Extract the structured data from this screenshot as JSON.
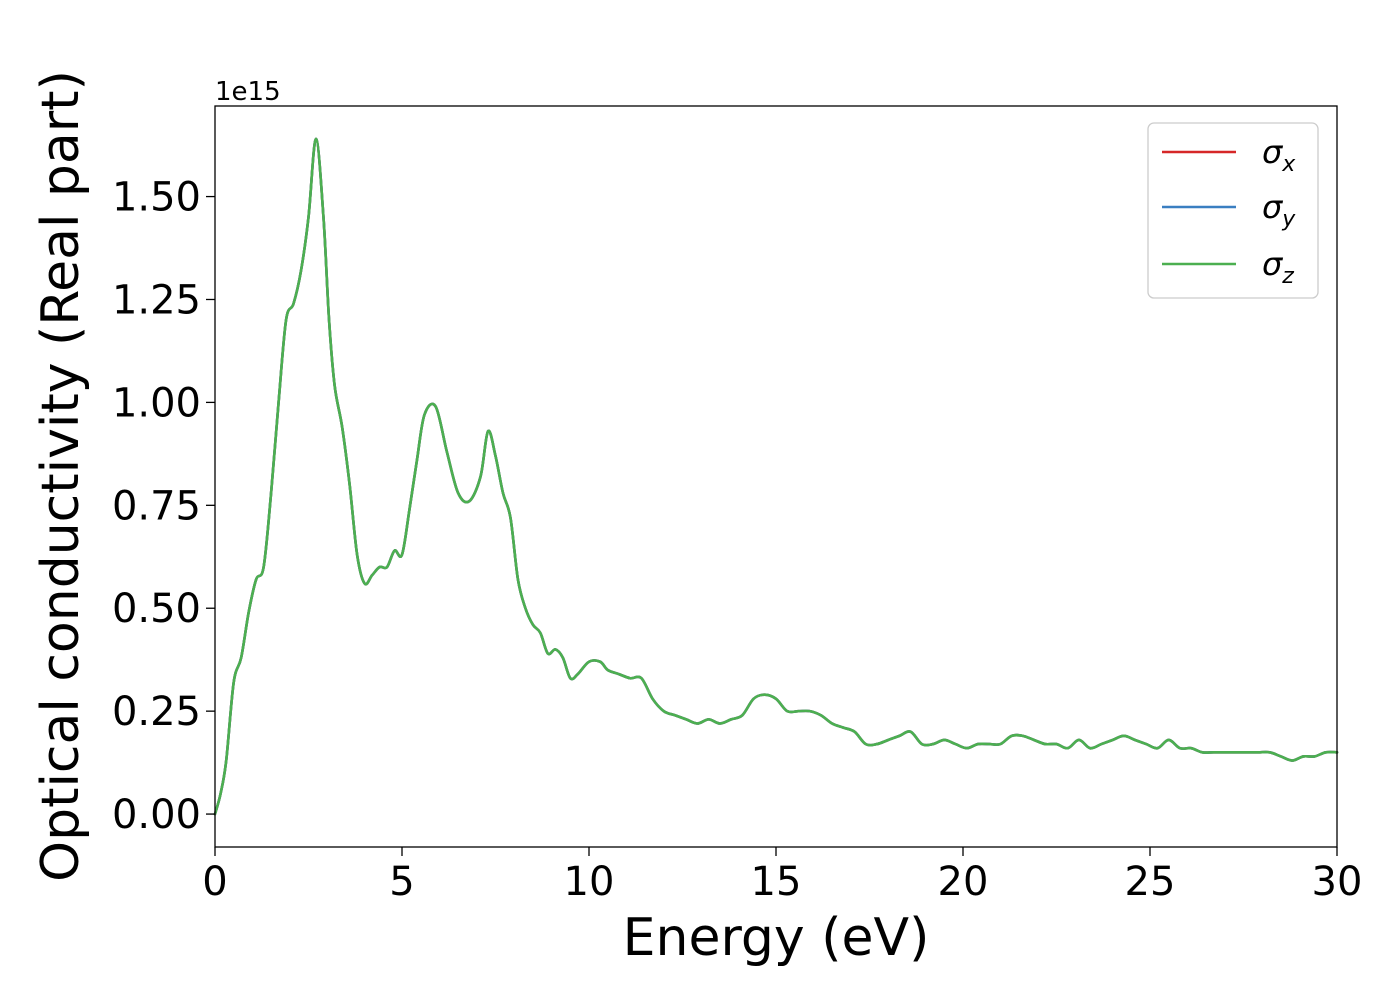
{
  "chart_data": {
    "type": "line",
    "title": "",
    "xlabel": "Energy (eV)",
    "ylabel": "Optical conductivity (Real part)",
    "y_offset_text": "1e15",
    "xlim": [
      0,
      30
    ],
    "ylim": [
      -0.08,
      1.72
    ],
    "x_ticks": [
      0,
      5,
      10,
      15,
      20,
      25,
      30
    ],
    "x_tick_labels": [
      "0",
      "5",
      "10",
      "15",
      "20",
      "25",
      "30"
    ],
    "y_ticks": [
      0.0,
      0.25,
      0.5,
      0.75,
      1.0,
      1.25,
      1.5
    ],
    "y_tick_labels": [
      "0.00",
      "0.25",
      "0.50",
      "0.75",
      "1.00",
      "1.25",
      "1.50"
    ],
    "grid": false,
    "legend_position": "top-right",
    "legend": [
      {
        "symbol": "σ",
        "subscript": "x",
        "color": "#d62728"
      },
      {
        "symbol": "σ",
        "subscript": "y",
        "color": "#3a7fc1"
      },
      {
        "symbol": "σ",
        "subscript": "z",
        "color": "#4caf50"
      }
    ],
    "x": [
      0,
      0.15,
      0.3,
      0.5,
      0.7,
      0.9,
      1.1,
      1.3,
      1.5,
      1.7,
      1.9,
      2.1,
      2.3,
      2.5,
      2.7,
      2.9,
      3.05,
      3.2,
      3.4,
      3.6,
      3.8,
      4.0,
      4.2,
      4.4,
      4.6,
      4.8,
      5.0,
      5.2,
      5.4,
      5.6,
      5.9,
      6.2,
      6.5,
      6.8,
      7.1,
      7.3,
      7.5,
      7.7,
      7.9,
      8.1,
      8.3,
      8.5,
      8.7,
      8.9,
      9.1,
      9.3,
      9.5,
      9.7,
      10.0,
      10.3,
      10.5,
      10.8,
      11.1,
      11.4,
      11.7,
      12.0,
      12.3,
      12.6,
      12.9,
      13.2,
      13.5,
      13.8,
      14.1,
      14.4,
      14.7,
      15.0,
      15.3,
      15.6,
      15.9,
      16.2,
      16.5,
      16.8,
      17.1,
      17.4,
      17.7,
      18.0,
      18.3,
      18.6,
      18.9,
      19.2,
      19.5,
      19.8,
      20.1,
      20.4,
      20.7,
      21.0,
      21.3,
      21.6,
      21.9,
      22.2,
      22.5,
      22.8,
      23.1,
      23.4,
      23.7,
      24.0,
      24.3,
      24.6,
      24.9,
      25.2,
      25.5,
      25.8,
      26.1,
      26.4,
      26.7,
      27.0,
      27.3,
      27.6,
      27.9,
      28.2,
      28.5,
      28.8,
      29.1,
      29.4,
      29.7,
      30.0
    ],
    "series": [
      {
        "name": "σx",
        "color": "#d62728",
        "values": [
          0.0,
          0.05,
          0.13,
          0.32,
          0.38,
          0.49,
          0.57,
          0.6,
          0.78,
          1.0,
          1.2,
          1.24,
          1.32,
          1.45,
          1.64,
          1.45,
          1.2,
          1.04,
          0.94,
          0.8,
          0.63,
          0.56,
          0.58,
          0.6,
          0.6,
          0.64,
          0.63,
          0.74,
          0.86,
          0.97,
          0.99,
          0.88,
          0.78,
          0.76,
          0.82,
          0.93,
          0.87,
          0.78,
          0.72,
          0.57,
          0.5,
          0.46,
          0.44,
          0.39,
          0.4,
          0.38,
          0.33,
          0.34,
          0.37,
          0.37,
          0.35,
          0.34,
          0.33,
          0.33,
          0.28,
          0.25,
          0.24,
          0.23,
          0.22,
          0.23,
          0.22,
          0.23,
          0.24,
          0.28,
          0.29,
          0.28,
          0.25,
          0.25,
          0.25,
          0.24,
          0.22,
          0.21,
          0.2,
          0.17,
          0.17,
          0.18,
          0.19,
          0.2,
          0.17,
          0.17,
          0.18,
          0.17,
          0.16,
          0.17,
          0.17,
          0.17,
          0.19,
          0.19,
          0.18,
          0.17,
          0.17,
          0.16,
          0.18,
          0.16,
          0.17,
          0.18,
          0.19,
          0.18,
          0.17,
          0.16,
          0.18,
          0.16,
          0.16,
          0.15,
          0.15,
          0.15,
          0.15,
          0.15,
          0.15,
          0.15,
          0.14,
          0.13,
          0.14,
          0.14,
          0.15,
          0.15
        ]
      },
      {
        "name": "σy",
        "color": "#3a7fc1",
        "values": [
          0.0,
          0.05,
          0.13,
          0.32,
          0.38,
          0.49,
          0.57,
          0.6,
          0.78,
          1.0,
          1.2,
          1.24,
          1.32,
          1.45,
          1.64,
          1.45,
          1.2,
          1.04,
          0.94,
          0.8,
          0.63,
          0.56,
          0.58,
          0.6,
          0.6,
          0.64,
          0.63,
          0.74,
          0.86,
          0.97,
          0.99,
          0.88,
          0.78,
          0.76,
          0.82,
          0.93,
          0.87,
          0.78,
          0.72,
          0.57,
          0.5,
          0.46,
          0.44,
          0.39,
          0.4,
          0.38,
          0.33,
          0.34,
          0.37,
          0.37,
          0.35,
          0.34,
          0.33,
          0.33,
          0.28,
          0.25,
          0.24,
          0.23,
          0.22,
          0.23,
          0.22,
          0.23,
          0.24,
          0.28,
          0.29,
          0.28,
          0.25,
          0.25,
          0.25,
          0.24,
          0.22,
          0.21,
          0.2,
          0.17,
          0.17,
          0.18,
          0.19,
          0.2,
          0.17,
          0.17,
          0.18,
          0.17,
          0.16,
          0.17,
          0.17,
          0.17,
          0.19,
          0.19,
          0.18,
          0.17,
          0.17,
          0.16,
          0.18,
          0.16,
          0.17,
          0.18,
          0.19,
          0.18,
          0.17,
          0.16,
          0.18,
          0.16,
          0.16,
          0.15,
          0.15,
          0.15,
          0.15,
          0.15,
          0.15,
          0.15,
          0.14,
          0.13,
          0.14,
          0.14,
          0.15,
          0.15
        ]
      },
      {
        "name": "σz",
        "color": "#4caf50",
        "values": [
          0.0,
          0.05,
          0.13,
          0.32,
          0.38,
          0.49,
          0.57,
          0.6,
          0.78,
          1.0,
          1.2,
          1.24,
          1.32,
          1.45,
          1.64,
          1.45,
          1.2,
          1.04,
          0.94,
          0.8,
          0.63,
          0.56,
          0.58,
          0.6,
          0.6,
          0.64,
          0.63,
          0.74,
          0.86,
          0.97,
          0.99,
          0.88,
          0.78,
          0.76,
          0.82,
          0.93,
          0.87,
          0.78,
          0.72,
          0.57,
          0.5,
          0.46,
          0.44,
          0.39,
          0.4,
          0.38,
          0.33,
          0.34,
          0.37,
          0.37,
          0.35,
          0.34,
          0.33,
          0.33,
          0.28,
          0.25,
          0.24,
          0.23,
          0.22,
          0.23,
          0.22,
          0.23,
          0.24,
          0.28,
          0.29,
          0.28,
          0.25,
          0.25,
          0.25,
          0.24,
          0.22,
          0.21,
          0.2,
          0.17,
          0.17,
          0.18,
          0.19,
          0.2,
          0.17,
          0.17,
          0.18,
          0.17,
          0.16,
          0.17,
          0.17,
          0.17,
          0.19,
          0.19,
          0.18,
          0.17,
          0.17,
          0.16,
          0.18,
          0.16,
          0.17,
          0.18,
          0.19,
          0.18,
          0.17,
          0.16,
          0.18,
          0.16,
          0.16,
          0.15,
          0.15,
          0.15,
          0.15,
          0.15,
          0.15,
          0.15,
          0.14,
          0.13,
          0.14,
          0.14,
          0.15,
          0.15
        ]
      }
    ]
  }
}
